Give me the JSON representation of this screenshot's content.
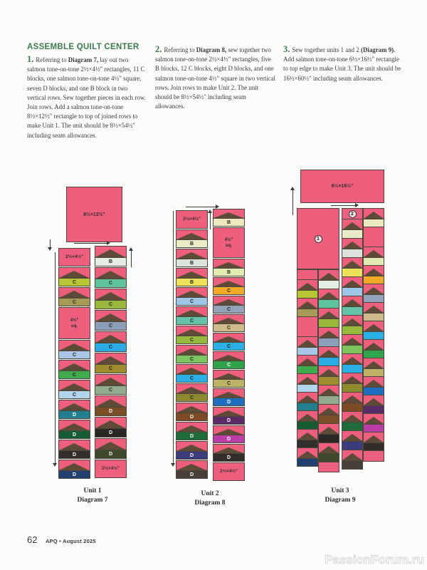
{
  "heading": "ASSEMBLE QUILT CENTER",
  "colors": {
    "salmon": "#EE5F7D",
    "triangle_brown": "#5D4B38",
    "outline": "#4B463E",
    "heading_green": "#3E7A50",
    "body_text": "#3B3A38",
    "watermark_gray": "#D7D7D7"
  },
  "steps": [
    {
      "num": "1.",
      "segments": [
        {
          "text": "Referring to ",
          "bold": false
        },
        {
          "text": "Diagram 7,",
          "bold": true
        },
        {
          "text": " lay out two salmon tone-on-tone 2½×4½\" rectangles, 11 C blocks, one salmon tone-on-tone 4½\" square, seven D blocks, and one B block in two vertical rows. Sew together pieces in each row. Join rows. Add a salmon tone-on-tone 8½×12½\" rectangle to top of joined rows to make Unit 1. The unit should be 8½×54½\" including seam allowances.",
          "bold": false
        }
      ]
    },
    {
      "num": "2.",
      "segments": [
        {
          "text": "Referring to ",
          "bold": false
        },
        {
          "text": "Diagram 8,",
          "bold": true
        },
        {
          "text": " sew together two salmon tone-on-tone 2½×4½\" rectangles, five B blocks, 12 C blocks, eight D blocks, and one salmon tone-on-tone 4½\" square in two vertical rows. Join rows to make Unit 2. The unit should be 8½×54½\" including seam allowances.",
          "bold": false
        }
      ]
    },
    {
      "num": "3.",
      "segments": [
        {
          "text": "Sew together units 1 and 2 ",
          "bold": false
        },
        {
          "text": "(Diagram 9).",
          "bold": true
        },
        {
          "text": " Add salmon tone-on-tone 6½×16½\" rectangle to top edge to make Unit 3. The unit should be 16½×60½\" including seam allowances.",
          "bold": false
        }
      ]
    }
  ],
  "diagrams": {
    "d7": {
      "unit_label": "Unit 1",
      "diagram_label": "Diagram 7",
      "top_rect_label": "8½×12½\"",
      "col_left": [
        {
          "t": "rect",
          "label": "2½×4½\""
        },
        {
          "t": "blk",
          "letter": "C",
          "color": "#B8C634"
        },
        {
          "t": "blk",
          "letter": "C",
          "color": "#A79A56"
        },
        {
          "t": "sq",
          "label": "4½\"",
          "label2": "sq."
        },
        {
          "t": "blk",
          "letter": "C",
          "color": "#A9C6E8"
        },
        {
          "t": "blk",
          "letter": "C",
          "color": "#3FAB4D"
        },
        {
          "t": "blk",
          "letter": "C",
          "color": "#B0D5EC"
        },
        {
          "t": "blk",
          "letter": "D",
          "color": "#22808E"
        },
        {
          "t": "blk",
          "letter": "D",
          "color": "#155C33"
        },
        {
          "t": "blk",
          "letter": "D",
          "color": "#312E2B"
        },
        {
          "t": "blk",
          "letter": "D",
          "color": "#22406F"
        }
      ],
      "col_right": [
        {
          "t": "blk",
          "letter": "B",
          "color": "#E6EDE4"
        },
        {
          "t": "blk",
          "letter": "C",
          "color": "#5EC49B"
        },
        {
          "t": "blk",
          "letter": "C",
          "color": "#98B83C"
        },
        {
          "t": "blk",
          "letter": "C",
          "color": "#8C9EB9"
        },
        {
          "t": "blk",
          "letter": "C",
          "color": "#29ACE3"
        },
        {
          "t": "blk",
          "letter": "C",
          "color": "#A08C2C"
        },
        {
          "t": "blk",
          "letter": "C",
          "color": "#92AB8D"
        },
        {
          "t": "blk",
          "letter": "D",
          "color": "#7C4E28"
        },
        {
          "t": "blk",
          "letter": "D",
          "color": "#2B2724"
        },
        {
          "t": "blk",
          "letter": "D",
          "color": "#41492C"
        },
        {
          "t": "rect",
          "label": "2½×4½\""
        }
      ]
    },
    "d8": {
      "unit_label": "Unit 2",
      "diagram_label": "Diagram 8",
      "col_left": [
        {
          "t": "rect",
          "label": "2½×4½\""
        },
        {
          "t": "blk",
          "letter": "B",
          "color": "#E9EDC6"
        },
        {
          "t": "blk",
          "letter": "B",
          "color": "#DBE3DB"
        },
        {
          "t": "blk",
          "letter": "B",
          "color": "#EDE159"
        },
        {
          "t": "blk",
          "letter": "C",
          "color": "#9FC5E8"
        },
        {
          "t": "blk",
          "letter": "C",
          "color": "#63C4A9"
        },
        {
          "t": "blk",
          "letter": "C",
          "color": "#97B93E"
        },
        {
          "t": "blk",
          "letter": "C",
          "color": "#7CC45E"
        },
        {
          "t": "blk",
          "letter": "C",
          "color": "#2BB0E6"
        },
        {
          "t": "blk",
          "letter": "C",
          "color": "#8E8A30"
        },
        {
          "t": "blk",
          "letter": "D",
          "color": "#7C4A24"
        },
        {
          "t": "blk",
          "letter": "D",
          "color": "#1C6B38"
        },
        {
          "t": "blk",
          "letter": "D",
          "color": "#3C3C7D"
        },
        {
          "t": "blk",
          "letter": "D",
          "color": "#474039"
        }
      ],
      "col_right": [
        {
          "t": "blk",
          "letter": "B",
          "color": "#EDE8BE"
        },
        {
          "t": "sq",
          "label": "4½\"",
          "label2": "sq."
        },
        {
          "t": "blk",
          "letter": "B",
          "color": "#E2EBB0"
        },
        {
          "t": "blk",
          "letter": "C",
          "color": "#F5A928"
        },
        {
          "t": "blk",
          "letter": "C",
          "color": "#93A1B9"
        },
        {
          "t": "blk",
          "letter": "C",
          "color": "#CDBB8C"
        },
        {
          "t": "blk",
          "letter": "C",
          "color": "#2BB0E6"
        },
        {
          "t": "blk",
          "letter": "C",
          "color": "#2FA34C"
        },
        {
          "t": "blk",
          "letter": "C",
          "color": "#BDB266"
        },
        {
          "t": "blk",
          "letter": "D",
          "color": "#1E6FC0"
        },
        {
          "t": "blk",
          "letter": "D",
          "color": "#5A2B67"
        },
        {
          "t": "blk",
          "letter": "D",
          "color": "#BA3EA6"
        },
        {
          "t": "blk",
          "letter": "D",
          "color": "#322D29"
        },
        {
          "t": "rect",
          "label": "2½×4½\""
        }
      ]
    },
    "d9": {
      "unit_label": "Unit 3",
      "diagram_label": "Diagram 9",
      "top_rect_label": "6½×16½\"",
      "unit1_circle": "1",
      "unit2_circle": "2"
    }
  },
  "footer": {
    "page_number": "62",
    "credit": "APQ • August 2025"
  },
  "watermark": "PassionForum.ru"
}
